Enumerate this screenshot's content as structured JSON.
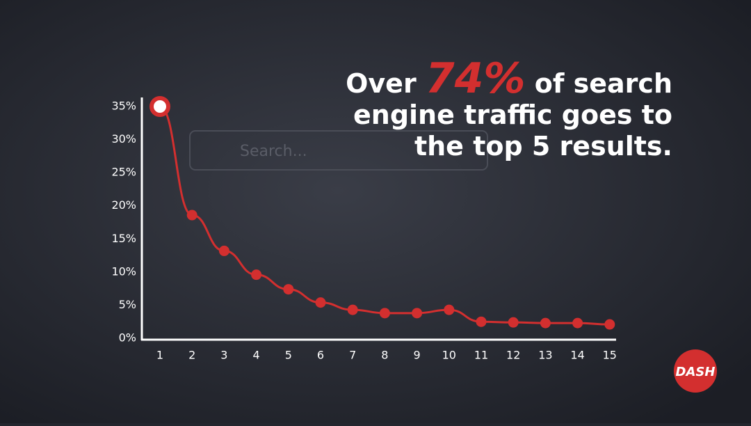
{
  "chart_data": {
    "type": "line",
    "headline": {
      "line1_start": "Over ",
      "highlight": "74%",
      "line1_end": " of search",
      "line2": "engine traffic goes to",
      "line3": "the top 5 results."
    },
    "background_text": "Search...",
    "logo": "DASH",
    "categories": [
      "1",
      "2",
      "3",
      "4",
      "5",
      "6",
      "7",
      "8",
      "9",
      "10",
      "11",
      "12",
      "13",
      "14",
      "15"
    ],
    "values": [
      35,
      18.6,
      13.2,
      9.6,
      7.4,
      5.4,
      4.3,
      3.8,
      3.8,
      4.3,
      2.5,
      2.4,
      2.3,
      2.3,
      2.1
    ],
    "color": "#d32f2f",
    "ylim": [
      0,
      35
    ],
    "yticks": [
      {
        "value": 0,
        "label": "0%"
      },
      {
        "value": 5,
        "label": "5%"
      },
      {
        "value": 10,
        "label": "10%"
      },
      {
        "value": 15,
        "label": "15%"
      },
      {
        "value": 20,
        "label": "20%"
      },
      {
        "value": 25,
        "label": "25%"
      },
      {
        "value": 30,
        "label": "30%"
      },
      {
        "value": 35,
        "label": "35%"
      }
    ]
  }
}
